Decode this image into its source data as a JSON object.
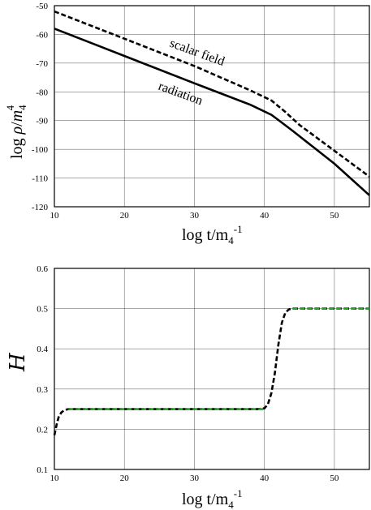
{
  "chart_data": [
    {
      "type": "line",
      "xlabel": "log  t/m4-1",
      "ylabel": "log ρ/m44",
      "xlim": [
        10,
        55
      ],
      "ylim": [
        -120,
        -50
      ],
      "xticks": [
        "10",
        "20",
        "30",
        "40",
        "50"
      ],
      "yticks": [
        "-50",
        "-60",
        "-70",
        "-80",
        "-90",
        "-100",
        "-110",
        "-120"
      ],
      "grid": true,
      "annotations": [
        "scalar field",
        "radiation"
      ],
      "series": [
        {
          "name": "scalar field",
          "style": "dashed",
          "color": "#000000",
          "x": [
            10,
            20,
            30,
            38,
            41,
            43,
            45,
            50,
            55
          ],
          "y": [
            -52,
            -61.5,
            -71,
            -79.5,
            -83,
            -87,
            -91.5,
            -100.5,
            -109.5
          ]
        },
        {
          "name": "radiation",
          "style": "solid",
          "color": "#000000",
          "x": [
            10,
            20,
            30,
            38,
            41,
            42,
            44,
            50,
            55
          ],
          "y": [
            -58,
            -67.5,
            -77,
            -84.5,
            -88,
            -89.8,
            -93.5,
            -105,
            -116
          ]
        }
      ]
    },
    {
      "type": "line",
      "xlabel": "log  t/m4-1",
      "ylabel": "H",
      "xlim": [
        10,
        55
      ],
      "ylim": [
        0.1,
        0.6
      ],
      "xticks": [
        "10",
        "20",
        "30",
        "40",
        "50"
      ],
      "yticks": [
        "0.6",
        "0.5",
        "0.4",
        "0.3",
        "0.2",
        "0.1"
      ],
      "grid": true,
      "series": [
        {
          "style": "dashed",
          "color": "#000000",
          "x": [
            10,
            10.3,
            10.6,
            11,
            11.5,
            12,
            13,
            20,
            30,
            39,
            40,
            40.5,
            41,
            41.5,
            42,
            42.5,
            43,
            43.5,
            44,
            45,
            55
          ],
          "y": [
            0.185,
            0.21,
            0.23,
            0.242,
            0.248,
            0.25,
            0.25,
            0.25,
            0.25,
            0.25,
            0.252,
            0.262,
            0.29,
            0.34,
            0.41,
            0.465,
            0.49,
            0.498,
            0.5,
            0.5,
            0.5
          ]
        },
        {
          "style": "dashed",
          "color": "#1fa51f",
          "x": [
            12,
            40
          ],
          "y": [
            0.25,
            0.25
          ]
        },
        {
          "style": "dashed",
          "color": "#1fa51f",
          "x": [
            44,
            55
          ],
          "y": [
            0.5,
            0.5
          ]
        }
      ]
    }
  ]
}
